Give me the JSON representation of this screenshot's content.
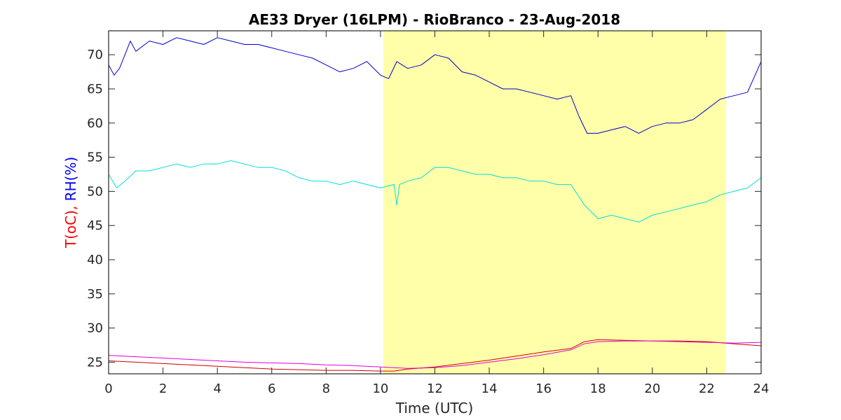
{
  "chart_data": {
    "type": "line",
    "title": "AE33 Dryer (16LPM)  - RioBranco - 23-Aug-2018",
    "xlabel": "Time (UTC)",
    "ylabel_parts": [
      {
        "text": "T(oC), ",
        "color": "#ff0000"
      },
      {
        "text": "RH(%)",
        "color": "#0000ff"
      }
    ],
    "xlim": [
      0,
      24
    ],
    "ylim": [
      23.3,
      73.5
    ],
    "xticks": [
      0,
      2,
      4,
      6,
      8,
      10,
      12,
      14,
      16,
      18,
      20,
      22,
      24
    ],
    "yticks": [
      25,
      30,
      35,
      40,
      45,
      50,
      55,
      60,
      65,
      70
    ],
    "grid": false,
    "highlight_band": {
      "x_start": 10.1,
      "x_end": 22.7,
      "color": "#ffffaa"
    },
    "series": [
      {
        "color": "#0000cc",
        "x": [
          0,
          0.2,
          0.4,
          0.6,
          0.8,
          1,
          1.5,
          2,
          2.5,
          3,
          3.5,
          4,
          4.5,
          5,
          5.5,
          6,
          6.5,
          7,
          7.5,
          8,
          8.5,
          9,
          9.5,
          10,
          10.3,
          10.6,
          11,
          11.5,
          12,
          12.5,
          13,
          13.5,
          14,
          14.5,
          15,
          15.5,
          16,
          16.5,
          17,
          17.3,
          17.6,
          18,
          18.5,
          19,
          19.5,
          20,
          20.5,
          21,
          21.5,
          22,
          22.5,
          23,
          23.5,
          24
        ],
        "y": [
          68.5,
          67,
          68,
          70,
          72,
          70.5,
          72,
          71.5,
          72.5,
          72,
          71.5,
          72.5,
          72,
          71.5,
          71.5,
          71,
          70.5,
          70,
          69.5,
          68.5,
          67.5,
          68,
          69,
          67,
          66.5,
          69,
          68,
          68.5,
          70,
          69.5,
          67.5,
          67,
          66,
          65,
          65,
          64.5,
          64,
          63.5,
          64,
          61,
          58.5,
          58.5,
          59,
          59.5,
          58.5,
          59.5,
          60,
          60,
          60.5,
          62,
          63.5,
          64,
          64.5,
          69
        ]
      },
      {
        "color": "#00dddd",
        "x": [
          0,
          0.3,
          0.6,
          1,
          1.5,
          2,
          2.5,
          3,
          3.5,
          4,
          4.5,
          5,
          5.5,
          6,
          6.5,
          7,
          7.5,
          8,
          8.5,
          9,
          9.5,
          10,
          10.5,
          10.6,
          10.7,
          11,
          11.5,
          12,
          12.5,
          13,
          13.5,
          14,
          14.5,
          15,
          15.5,
          16,
          16.5,
          17,
          17.5,
          18,
          18.5,
          19,
          19.5,
          20,
          20.5,
          21,
          21.5,
          22,
          22.5,
          23,
          23.5,
          24
        ],
        "y": [
          52.5,
          50.5,
          51.5,
          53,
          53,
          53.5,
          54,
          53.5,
          54,
          54,
          54.5,
          54,
          53.5,
          53.5,
          53,
          52,
          51.5,
          51.5,
          51,
          51.5,
          51,
          50.5,
          51,
          48,
          51,
          51.5,
          52,
          53.5,
          53.5,
          53,
          52.5,
          52.5,
          52,
          52,
          51.5,
          51.5,
          51,
          51,
          48,
          46,
          46.5,
          46,
          45.5,
          46.5,
          47,
          47.5,
          48,
          48.5,
          49.5,
          50,
          50.5,
          52
        ]
      },
      {
        "color": "#cc0000",
        "x": [
          0,
          1,
          2,
          3,
          4,
          5,
          6,
          7,
          8,
          9,
          10,
          10.5,
          11,
          12,
          13,
          14,
          15,
          16,
          17,
          17.5,
          18,
          19,
          20,
          21,
          22,
          23,
          24
        ],
        "y": [
          25.2,
          25,
          24.8,
          24.6,
          24.4,
          24.2,
          24,
          23.9,
          23.8,
          23.8,
          23.7,
          23.7,
          24,
          24.3,
          24.8,
          25.3,
          25.9,
          26.5,
          27,
          28,
          28.3,
          28.2,
          28.1,
          28.1,
          28,
          27.7,
          27.4
        ]
      },
      {
        "color": "#dd00dd",
        "x": [
          0,
          1,
          2,
          3,
          4,
          5,
          6,
          7,
          8,
          9,
          10,
          11,
          12,
          13,
          14,
          15,
          16,
          17,
          17.5,
          18,
          19,
          20,
          21,
          22,
          23,
          24
        ],
        "y": [
          26,
          25.8,
          25.6,
          25.4,
          25.2,
          25,
          24.9,
          24.8,
          24.6,
          24.5,
          24.3,
          24.1,
          24.2,
          24.5,
          25,
          25.5,
          26.1,
          26.8,
          27.7,
          28,
          28.1,
          28.1,
          28,
          27.9,
          27.8,
          27.9
        ]
      }
    ]
  }
}
